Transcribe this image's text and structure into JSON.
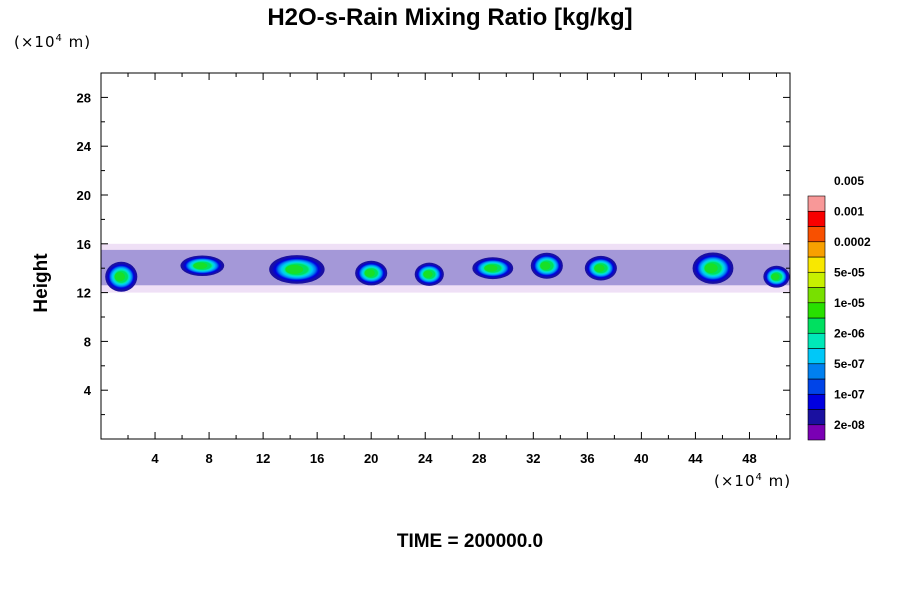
{
  "chart_data": {
    "type": "heatmap",
    "title": "H2O-s-Rain Mixing Ratio [kg/kg]",
    "ylabel": "Height",
    "x_unit": {
      "prefix": "(×10",
      "exp": "4",
      "suffix": " m)"
    },
    "y_unit": {
      "prefix": "(×10",
      "exp": "4",
      "suffix": " m)"
    },
    "xlim": [
      0,
      51
    ],
    "ylim": [
      0,
      30
    ],
    "x_ticks": [
      4,
      8,
      12,
      16,
      20,
      24,
      28,
      32,
      36,
      40,
      44,
      48
    ],
    "y_ticks": [
      4,
      8,
      12,
      16,
      20,
      24,
      28
    ],
    "colorbar": {
      "colors": [
        "#7a00b4",
        "#1a10a0",
        "#0000e0",
        "#0044e8",
        "#0080f0",
        "#00c8f8",
        "#00e8b8",
        "#00e060",
        "#28e000",
        "#78e000",
        "#c8f000",
        "#f8e800",
        "#f8a000",
        "#f85000",
        "#f80000",
        "#f89898"
      ],
      "labels": [
        "2e-08",
        "1e-07",
        "5e-07",
        "2e-06",
        "1e-05",
        "5e-05",
        "0.0002",
        "0.001",
        "0.005"
      ]
    },
    "cloud_layer": {
      "base_height": 12,
      "top_height": 16,
      "peak_height": 16.5
    },
    "clouds": [
      {
        "x": 1.5,
        "y": 13.3,
        "w": 2.2,
        "h": 2.2
      },
      {
        "x": 7.5,
        "y": 14.2,
        "w": 3.0,
        "h": 1.5
      },
      {
        "x": 14.5,
        "y": 13.9,
        "w": 3.8,
        "h": 2.1
      },
      {
        "x": 20.0,
        "y": 13.6,
        "w": 2.2,
        "h": 1.8
      },
      {
        "x": 24.3,
        "y": 13.5,
        "w": 2.0,
        "h": 1.7
      },
      {
        "x": 29.0,
        "y": 14.0,
        "w": 2.8,
        "h": 1.6
      },
      {
        "x": 33.0,
        "y": 14.2,
        "w": 2.2,
        "h": 1.9
      },
      {
        "x": 37.0,
        "y": 14.0,
        "w": 2.2,
        "h": 1.8
      },
      {
        "x": 45.3,
        "y": 14.0,
        "w": 2.8,
        "h": 2.3
      },
      {
        "x": 50.0,
        "y": 13.3,
        "w": 1.8,
        "h": 1.6
      }
    ]
  },
  "footer": {
    "time_label": "TIME = 200000.0"
  }
}
